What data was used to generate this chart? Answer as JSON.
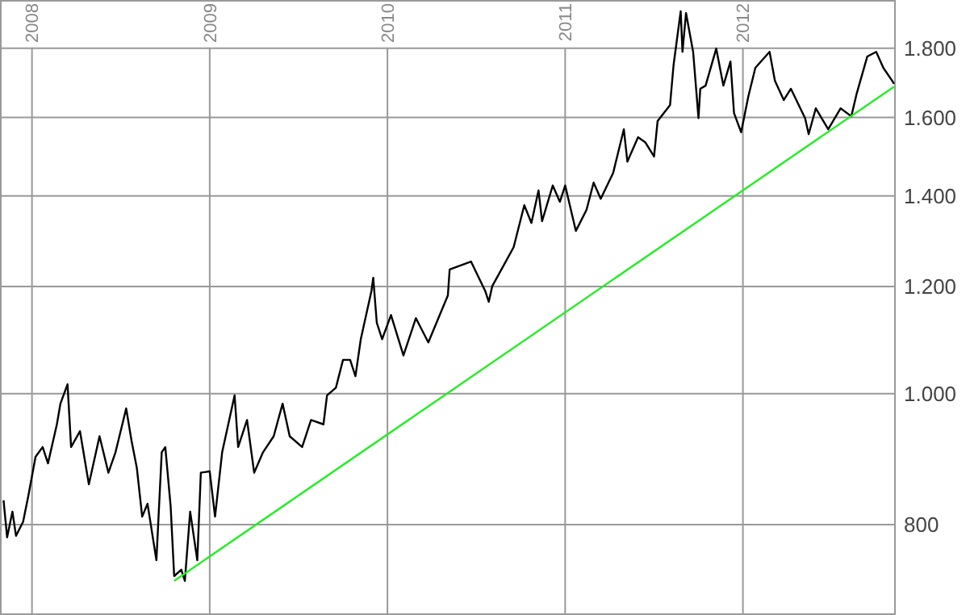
{
  "chart_data": {
    "type": "line",
    "log": true,
    "grid": true,
    "xlim": [
      2007.82,
      2012.86
    ],
    "ylim": [
      686,
      1954
    ],
    "xticks": [
      2008,
      2009,
      2010,
      2011,
      2012
    ],
    "yticks": [
      {
        "value": 800,
        "label": "800"
      },
      {
        "value": 1000,
        "label": "1.000"
      },
      {
        "value": 1200,
        "label": "1.200"
      },
      {
        "value": 1400,
        "label": "1.400"
      },
      {
        "value": 1600,
        "label": "1.600"
      },
      {
        "value": 1800,
        "label": "1.800"
      }
    ],
    "series": [
      {
        "color": "#000000",
        "x": [
          2007.84,
          2007.86,
          2007.89,
          2007.91,
          2007.95,
          2007.98,
          2008.02,
          2008.06,
          2008.09,
          2008.14,
          2008.16,
          2008.2,
          2008.22,
          2008.27,
          2008.32,
          2008.38,
          2008.43,
          2008.47,
          2008.53,
          2008.56,
          2008.59,
          2008.62,
          2008.65,
          2008.7,
          2008.73,
          2008.75,
          2008.78,
          2008.8,
          2008.84,
          2008.86,
          2008.89,
          2008.93,
          2008.95,
          2009.0,
          2009.03,
          2009.07,
          2009.14,
          2009.16,
          2009.21,
          2009.25,
          2009.3,
          2009.36,
          2009.41,
          2009.45,
          2009.52,
          2009.57,
          2009.64,
          2009.66,
          2009.71,
          2009.75,
          2009.79,
          2009.82,
          2009.85,
          2009.91,
          2009.92,
          2009.94,
          2009.97,
          2010.02,
          2010.09,
          2010.16,
          2010.23,
          2010.34,
          2010.35,
          2010.47,
          2010.55,
          2010.57,
          2010.59,
          2010.66,
          2010.71,
          2010.77,
          2010.81,
          2010.85,
          2010.87,
          2010.93,
          2010.97,
          2011.0,
          2011.06,
          2011.12,
          2011.16,
          2011.2,
          2011.27,
          2011.33,
          2011.35,
          2011.41,
          2011.45,
          2011.5,
          2011.52,
          2011.59,
          2011.61,
          2011.65,
          2011.66,
          2011.68,
          2011.72,
          2011.75,
          2011.76,
          2011.79,
          2011.85,
          2011.89,
          2011.93,
          2011.95,
          2011.99,
          2012.03,
          2012.07,
          2012.15,
          2012.18,
          2012.23,
          2012.27,
          2012.35,
          2012.37,
          2012.41,
          2012.48,
          2012.55,
          2012.61,
          2012.64,
          2012.7,
          2012.75,
          2012.79,
          2012.84,
          2012.85
        ],
        "values": [
          834,
          783,
          818,
          785,
          804,
          841,
          898,
          913,
          888,
          949,
          983,
          1016,
          913,
          938,
          857,
          930,
          874,
          905,
          975,
          923,
          881,
          811,
          829,
          753,
          905,
          913,
          826,
          733,
          741,
          727,
          818,
          753,
          874,
          876,
          811,
          905,
          997,
          913,
          956,
          874,
          905,
          930,
          983,
          930,
          913,
          956,
          949,
          997,
          1010,
          1059,
          1059,
          1030,
          1097,
          1191,
          1218,
          1128,
          1097,
          1143,
          1067,
          1137,
          1091,
          1182,
          1235,
          1252,
          1191,
          1169,
          1201,
          1248,
          1283,
          1378,
          1337,
          1413,
          1341,
          1425,
          1386,
          1425,
          1319,
          1367,
          1432,
          1393,
          1456,
          1568,
          1484,
          1547,
          1534,
          1497,
          1590,
          1634,
          1750,
          1917,
          1789,
          1911,
          1789,
          1598,
          1680,
          1689,
          1799,
          1689,
          1760,
          1612,
          1560,
          1657,
          1741,
          1789,
          1703,
          1648,
          1680,
          1598,
          1555,
          1625,
          1568,
          1625,
          1603,
          1666,
          1775,
          1789,
          1741,
          1703,
          1694
        ]
      },
      {
        "color": "#22ee22",
        "x": [
          2008.8,
          2012.85
        ],
        "values": [
          727,
          1686
        ]
      }
    ]
  }
}
